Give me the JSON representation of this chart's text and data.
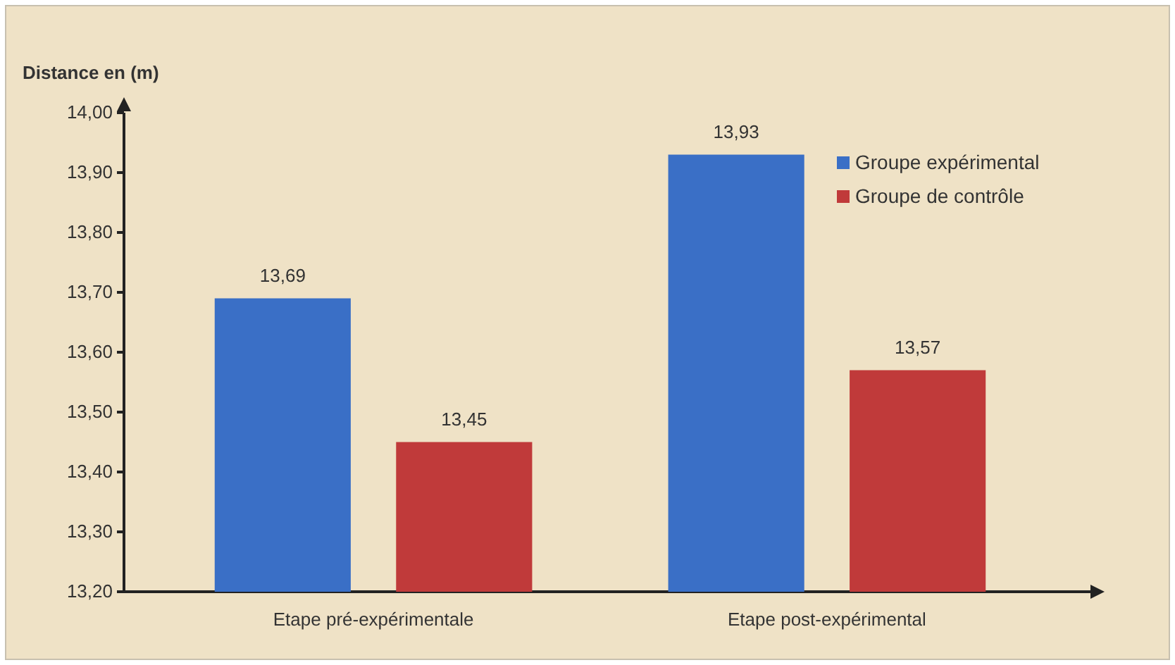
{
  "chart_data": {
    "type": "bar",
    "ylabel": "Distance en (m)",
    "categories": [
      "Etape pré-expérimentale",
      "Etape post-expérimental"
    ],
    "series": [
      {
        "name": "Groupe expérimental",
        "color": "#3a6fc6",
        "values": [
          13.69,
          13.93
        ],
        "value_labels": [
          "13,69",
          "13,93"
        ]
      },
      {
        "name": "Groupe de contrôle",
        "color": "#c03a3a",
        "values": [
          13.45,
          13.57
        ],
        "value_labels": [
          "13,45",
          "13,57"
        ]
      }
    ],
    "ylim": [
      13.2,
      14.0
    ],
    "yticks": [
      {
        "value": 13.2,
        "label": "13,20"
      },
      {
        "value": 13.3,
        "label": "13,30"
      },
      {
        "value": 13.4,
        "label": "13,40"
      },
      {
        "value": 13.5,
        "label": "13,50"
      },
      {
        "value": 13.6,
        "label": "13,60"
      },
      {
        "value": 13.7,
        "label": "13,70"
      },
      {
        "value": 13.8,
        "label": "13,80"
      },
      {
        "value": 13.9,
        "label": "13,90"
      },
      {
        "value": 14.0,
        "label": "14,00"
      }
    ],
    "legend": "top right"
  }
}
